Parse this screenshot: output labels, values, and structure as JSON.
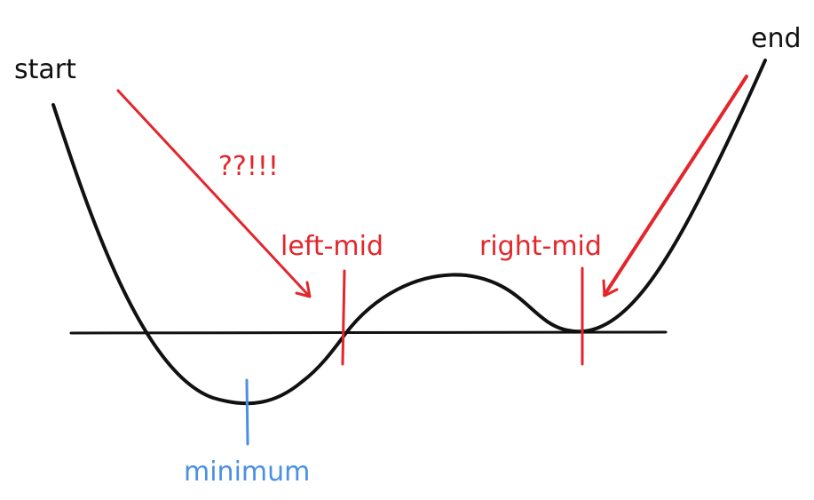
{
  "labels": {
    "start": "start",
    "end": "end",
    "question": "??!!!",
    "left_mid": "left-mid",
    "right_mid": "right-mid",
    "minimum": "minimum"
  },
  "colors": {
    "ink": "#111111",
    "red": "#e3262c",
    "blue": "#4a90e2",
    "background": "#ffffff"
  }
}
